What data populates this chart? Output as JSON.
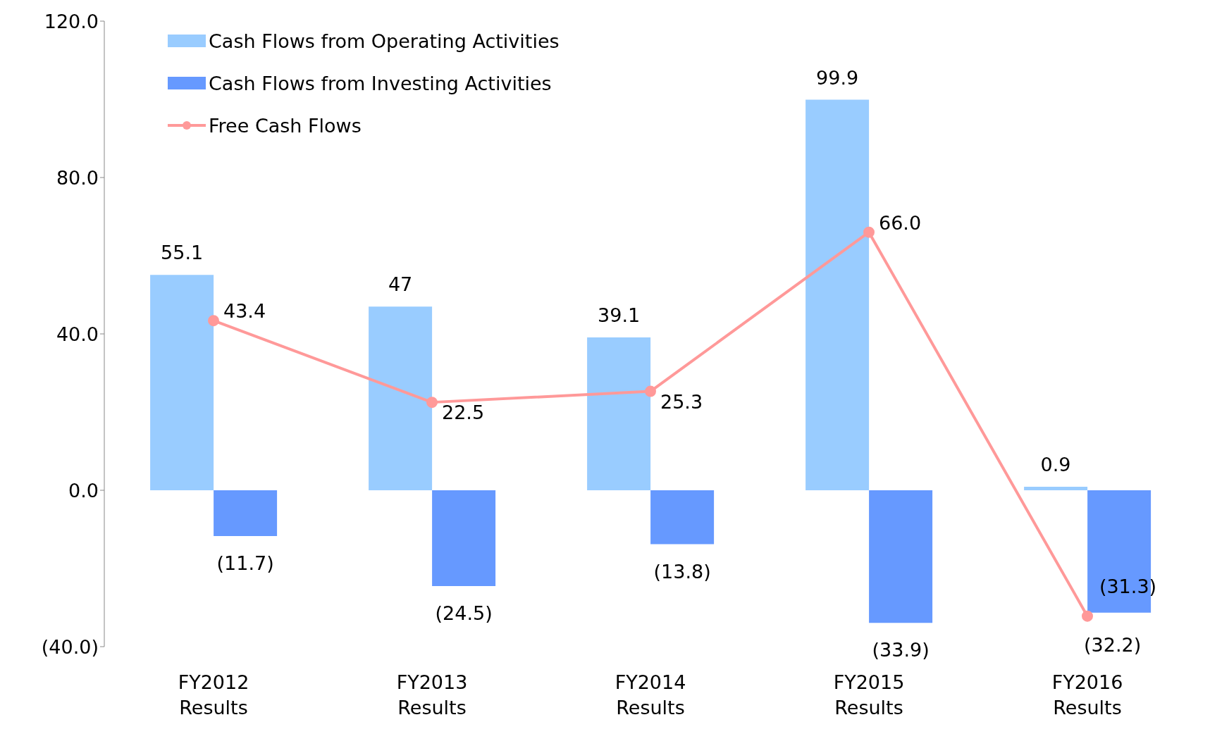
{
  "chart_data": {
    "type": "bar",
    "categories": [
      "FY2012 Results",
      "FY2013 Results",
      "FY2014 Results",
      "FY2015 Results",
      "FY2016 Results"
    ],
    "series": [
      {
        "name": "Cash Flows from Operating Activities",
        "color": "#99ccff",
        "values": [
          55.1,
          47,
          39.1,
          99.9,
          0.9
        ],
        "value_labels": [
          "55.1",
          "47",
          "39.1",
          "99.9",
          "0.9"
        ]
      },
      {
        "name": "Cash Flows from Investing Activities",
        "color": "#6699ff",
        "values": [
          -11.7,
          -24.5,
          -13.8,
          -33.9,
          -31.3
        ],
        "value_labels": [
          "(11.7)",
          "(24.5)",
          "(13.8)",
          "(33.9)",
          "(31.3)"
        ]
      },
      {
        "name": "Free Cash Flows",
        "type": "line",
        "color": "#ff9999",
        "values": [
          43.4,
          22.5,
          25.3,
          66.0,
          -32.2
        ],
        "value_labels": [
          "43.4",
          "22.5",
          "25.3",
          "66.0",
          "(32.2)"
        ]
      }
    ],
    "ylim": [
      -40,
      120
    ],
    "yticks": [
      {
        "value": -40,
        "label": "(40.0)"
      },
      {
        "value": 0,
        "label": "0.0"
      },
      {
        "value": 40,
        "label": "40.0"
      },
      {
        "value": 80,
        "label": "80.0"
      },
      {
        "value": 120,
        "label": "120.0"
      }
    ],
    "grid": false,
    "legend": "top left",
    "marker": "circle",
    "line_style": "solid"
  }
}
